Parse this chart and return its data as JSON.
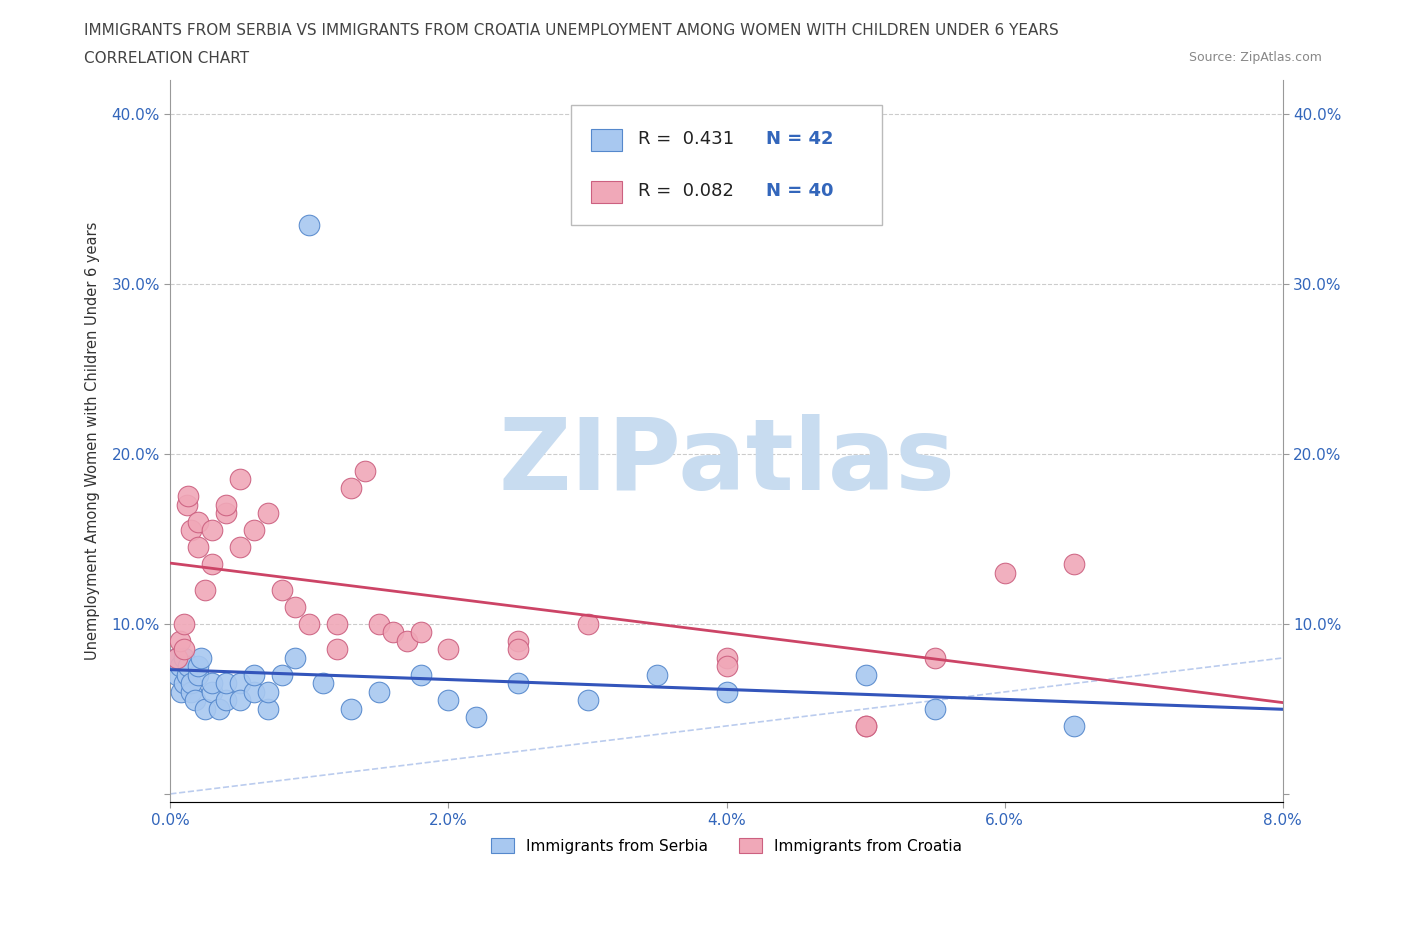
{
  "title_line1": "IMMIGRANTS FROM SERBIA VS IMMIGRANTS FROM CROATIA UNEMPLOYMENT AMONG WOMEN WITH CHILDREN UNDER 6 YEARS",
  "title_line2": "CORRELATION CHART",
  "source_text": "Source: ZipAtlas.com",
  "ylabel": "Unemployment Among Women with Children Under 6 years",
  "xlim": [
    0.0,
    0.08
  ],
  "ylim": [
    -0.005,
    0.42
  ],
  "xticks": [
    0.0,
    0.02,
    0.04,
    0.06,
    0.08
  ],
  "xtick_labels": [
    "0.0%",
    "2.0%",
    "4.0%",
    "6.0%",
    "8.0%"
  ],
  "yticks": [
    0.0,
    0.1,
    0.2,
    0.3,
    0.4
  ],
  "ytick_labels": [
    "",
    "10.0%",
    "20.0%",
    "30.0%",
    "40.0%"
  ],
  "serbia_color": "#A8C8F0",
  "croatia_color": "#F0A8B8",
  "serbia_edge": "#5588CC",
  "croatia_edge": "#CC6080",
  "serbia_line_color": "#3355BB",
  "croatia_line_color": "#CC4466",
  "diag_line_color": "#BBCCEE",
  "grid_color": "#CCCCCC",
  "watermark_color": "#C8DCF0",
  "watermark_text": "ZIPatlas",
  "legend_R_serbia": "R =  0.431",
  "legend_N_serbia": "N = 42",
  "legend_R_croatia": "R =  0.082",
  "legend_N_croatia": "N = 40",
  "legend_label_serbia": "Immigrants from Serbia",
  "legend_label_croatia": "Immigrants from Croatia",
  "serbia_x": [
    0.0005,
    0.0005,
    0.0007,
    0.0008,
    0.001,
    0.001,
    0.0012,
    0.0013,
    0.0015,
    0.0015,
    0.0018,
    0.002,
    0.002,
    0.0022,
    0.0025,
    0.003,
    0.003,
    0.0035,
    0.004,
    0.004,
    0.005,
    0.005,
    0.006,
    0.006,
    0.007,
    0.007,
    0.008,
    0.009,
    0.01,
    0.011,
    0.013,
    0.015,
    0.018,
    0.02,
    0.022,
    0.025,
    0.03,
    0.035,
    0.04,
    0.05,
    0.055,
    0.065
  ],
  "serbia_y": [
    0.07,
    0.08,
    0.075,
    0.06,
    0.065,
    0.08,
    0.07,
    0.075,
    0.06,
    0.065,
    0.055,
    0.07,
    0.075,
    0.08,
    0.05,
    0.06,
    0.065,
    0.05,
    0.055,
    0.065,
    0.065,
    0.055,
    0.06,
    0.07,
    0.05,
    0.06,
    0.07,
    0.08,
    0.335,
    0.065,
    0.05,
    0.06,
    0.07,
    0.055,
    0.045,
    0.065,
    0.055,
    0.07,
    0.06,
    0.07,
    0.05,
    0.04
  ],
  "croatia_x": [
    0.0005,
    0.0007,
    0.001,
    0.001,
    0.0012,
    0.0013,
    0.0015,
    0.002,
    0.002,
    0.0025,
    0.003,
    0.003,
    0.004,
    0.004,
    0.005,
    0.005,
    0.006,
    0.007,
    0.008,
    0.009,
    0.01,
    0.012,
    0.012,
    0.013,
    0.014,
    0.015,
    0.016,
    0.017,
    0.018,
    0.02,
    0.025,
    0.025,
    0.03,
    0.04,
    0.04,
    0.05,
    0.05,
    0.055,
    0.06,
    0.065
  ],
  "croatia_y": [
    0.08,
    0.09,
    0.1,
    0.085,
    0.17,
    0.175,
    0.155,
    0.16,
    0.145,
    0.12,
    0.155,
    0.135,
    0.165,
    0.17,
    0.185,
    0.145,
    0.155,
    0.165,
    0.12,
    0.11,
    0.1,
    0.085,
    0.1,
    0.18,
    0.19,
    0.1,
    0.095,
    0.09,
    0.095,
    0.085,
    0.09,
    0.085,
    0.1,
    0.08,
    0.075,
    0.04,
    0.04,
    0.08,
    0.13,
    0.135
  ],
  "figsize": [
    14.06,
    9.3
  ],
  "dpi": 100
}
